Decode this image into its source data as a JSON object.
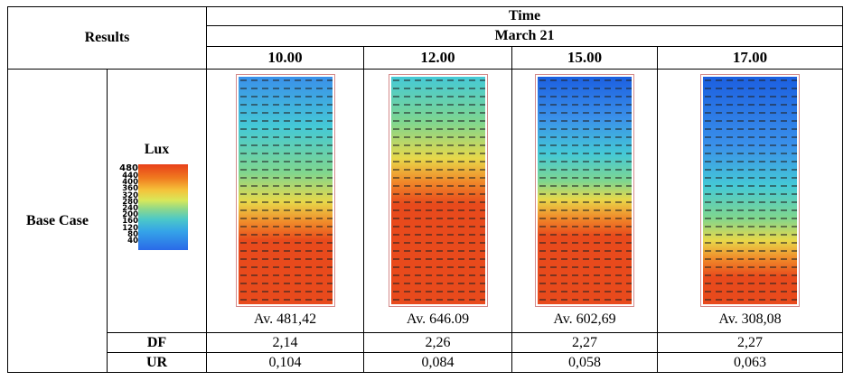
{
  "header": {
    "results_label": "Results",
    "time_label": "Time",
    "date_label": "March 21"
  },
  "columns": [
    {
      "time": "10.00",
      "average": "Av. 481,42",
      "df": "2,14",
      "ur": "0,104"
    },
    {
      "time": "12.00",
      "average": "Av. 646.09",
      "df": "2,26",
      "ur": "0,084"
    },
    {
      "time": "15.00",
      "average": "Av. 602,69",
      "df": "2,27",
      "ur": "0,058"
    },
    {
      "time": "17.00",
      "average": "Av. 308,08",
      "df": "2,27",
      "ur": "0,063"
    }
  ],
  "rows": {
    "base_case_label": "Base Case",
    "lux_label": "Lux",
    "df_label": "DF",
    "ur_label": "UR"
  },
  "legend": {
    "max_label": "480",
    "scale_labels": [
      "440",
      "400",
      "360",
      "320",
      "280",
      "240",
      "200",
      "160",
      "120",
      "80",
      "40"
    ],
    "colors": [
      "#e8401a",
      "#f07a1f",
      "#f5c23a",
      "#d8e85a",
      "#8fd88a",
      "#4cc8c8",
      "#35a4e8",
      "#2a6ae8"
    ]
  },
  "plot_colors": {
    "deep_blue": "#1c5fe0",
    "blue": "#3a90ea",
    "cyan": "#45c9d6",
    "green": "#7fd68f",
    "yellow": "#e8d84a",
    "orange": "#f08a2a",
    "red": "#e84a1c"
  }
}
